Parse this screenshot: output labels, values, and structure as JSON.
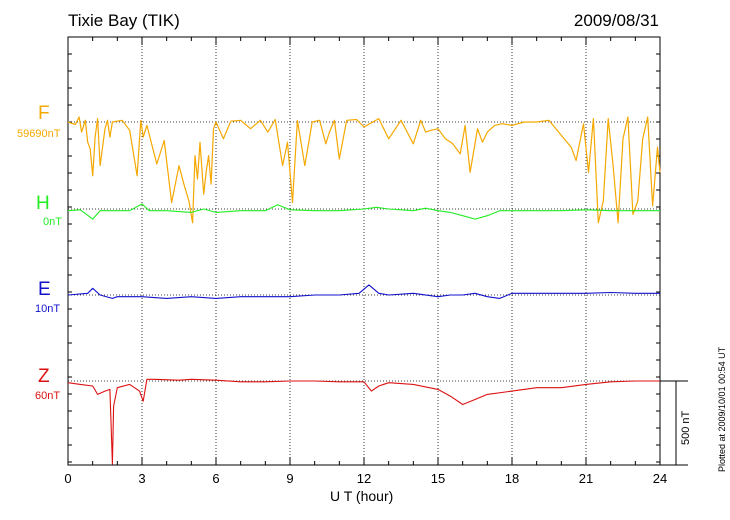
{
  "chart_data": {
    "type": "line",
    "title": "Tixie Bay (TIK)",
    "date": "2009/08/31",
    "xlabel": "U T (hour)",
    "xlim": [
      0,
      24
    ],
    "xticks": [
      "0",
      "3",
      "6",
      "9",
      "12",
      "15",
      "18",
      "21",
      "24"
    ],
    "grid": true,
    "scale_bar": "500 nT",
    "footer_note": "Plotted at 2009/10/01 00:54 UT",
    "series": [
      {
        "name": "F",
        "baseline": "59690nT",
        "color": "#f5a800",
        "x": [
          0,
          0.3,
          0.45,
          0.55,
          0.7,
          0.8,
          0.9,
          1.0,
          1.1,
          1.2,
          1.3,
          1.5,
          1.6,
          1.7,
          1.8,
          2.2,
          2.5,
          2.8,
          2.95,
          3.05,
          3.2,
          3.6,
          3.9,
          4.2,
          4.5,
          4.7,
          4.9,
          5.05,
          5.15,
          5.25,
          5.35,
          5.5,
          5.6,
          5.7,
          5.8,
          5.9,
          6.0,
          6.3,
          6.6,
          7.0,
          7.4,
          7.8,
          8.1,
          8.4,
          8.7,
          8.9,
          9.1,
          9.3,
          9.6,
          9.9,
          10.2,
          10.45,
          10.6,
          10.8,
          11.0,
          11.3,
          11.7,
          12.0,
          12.3,
          12.6,
          13.0,
          13.5,
          14.0,
          14.3,
          14.5,
          14.7,
          15.0,
          15.3,
          15.6,
          15.9,
          16.1,
          16.3,
          16.6,
          16.8,
          17.0,
          17.3,
          17.6,
          18.0,
          18.5,
          19.0,
          19.5,
          20.0,
          20.4,
          20.6,
          20.9,
          21.1,
          21.3,
          21.5,
          21.7,
          21.9,
          22.1,
          22.3,
          22.5,
          22.7,
          22.9,
          23.1,
          23.3,
          23.5,
          23.7,
          23.9,
          24
        ],
        "y": [
          0,
          -15,
          30,
          -60,
          10,
          -120,
          -160,
          -320,
          -90,
          20,
          -260,
          -40,
          10,
          -90,
          0,
          10,
          -50,
          -320,
          10,
          -90,
          -20,
          -250,
          -110,
          -480,
          -260,
          -370,
          -470,
          -600,
          -200,
          -340,
          -120,
          -430,
          -300,
          -200,
          -370,
          -40,
          0,
          -100,
          5,
          10,
          -40,
          10,
          -60,
          15,
          -260,
          -120,
          -480,
          10,
          -260,
          0,
          10,
          -130,
          -60,
          10,
          -220,
          10,
          15,
          -30,
          -5,
          20,
          -100,
          10,
          -130,
          10,
          -60,
          -50,
          -40,
          -100,
          -130,
          -190,
          -20,
          -300,
          -40,
          -120,
          -60,
          -20,
          -10,
          -20,
          0,
          0,
          10,
          -80,
          -150,
          -230,
          -10,
          -300,
          20,
          -600,
          -470,
          20,
          -260,
          -600,
          -100,
          30,
          -550,
          -470,
          -100,
          30,
          -500,
          -150,
          -300
        ],
        "fill_to_baseline": true
      },
      {
        "name": "H",
        "baseline": "0nT",
        "color": "#22ee22",
        "x": [
          0,
          0.5,
          1.0,
          1.3,
          1.8,
          2.5,
          3.0,
          3.3,
          4.0,
          5.0,
          5.5,
          6.0,
          7.0,
          8.0,
          8.5,
          9.0,
          10.0,
          11.0,
          12.0,
          12.5,
          13.0,
          14.0,
          14.5,
          15.0,
          15.5,
          16.0,
          16.5,
          17.0,
          17.5,
          18.0,
          19.0,
          20.0,
          21.0,
          22.0,
          23.0,
          24.0
        ],
        "y": [
          -10,
          -5,
          -60,
          -10,
          -10,
          -10,
          30,
          -10,
          -10,
          -20,
          0,
          -20,
          -10,
          -10,
          25,
          -5,
          -10,
          -10,
          0,
          10,
          0,
          -10,
          5,
          -10,
          -20,
          -40,
          -60,
          -40,
          -10,
          -10,
          -10,
          -10,
          -5,
          -10,
          -10,
          -10
        ]
      },
      {
        "name": "E",
        "baseline": "10nT",
        "color": "#1111cc",
        "x": [
          0,
          0.8,
          1.0,
          1.3,
          1.8,
          2.0,
          3.0,
          4.0,
          5.0,
          6.0,
          7.0,
          8.0,
          9.0,
          10.0,
          11.0,
          11.8,
          12.2,
          12.6,
          13.0,
          14.0,
          15.0,
          15.5,
          16.0,
          16.5,
          17.0,
          17.5,
          18.0,
          19.0,
          20.0,
          21.0,
          22.0,
          23.0,
          24.0
        ],
        "y": [
          0,
          10,
          40,
          0,
          -20,
          -10,
          -10,
          -20,
          -10,
          -20,
          -10,
          -10,
          -10,
          0,
          0,
          10,
          60,
          10,
          0,
          10,
          -10,
          0,
          0,
          10,
          -10,
          -20,
          10,
          10,
          10,
          10,
          15,
          10,
          10
        ]
      },
      {
        "name": "Z",
        "baseline": "60nT",
        "color": "#dd1111",
        "x": [
          0,
          0.5,
          1.0,
          1.2,
          1.5,
          1.7,
          1.8,
          1.85,
          2.0,
          2.5,
          2.9,
          3.05,
          3.2,
          3.5,
          4.5,
          5.0,
          6.0,
          7.0,
          8.0,
          9.0,
          10.0,
          11.0,
          12.0,
          12.3,
          12.6,
          13.0,
          14.0,
          15.0,
          15.5,
          16.0,
          16.5,
          17.0,
          18.0,
          19.0,
          20.0,
          21.0,
          22.0,
          23.0,
          24.0
        ],
        "y": [
          -10,
          -20,
          -30,
          -80,
          -60,
          -50,
          -500,
          -150,
          -40,
          -20,
          -60,
          -120,
          10,
          10,
          5,
          10,
          5,
          -5,
          -5,
          0,
          0,
          -5,
          -5,
          -60,
          -30,
          -10,
          -20,
          -50,
          -90,
          -140,
          -110,
          -80,
          -60,
          -40,
          -40,
          -20,
          -5,
          0,
          0
        ]
      }
    ]
  }
}
